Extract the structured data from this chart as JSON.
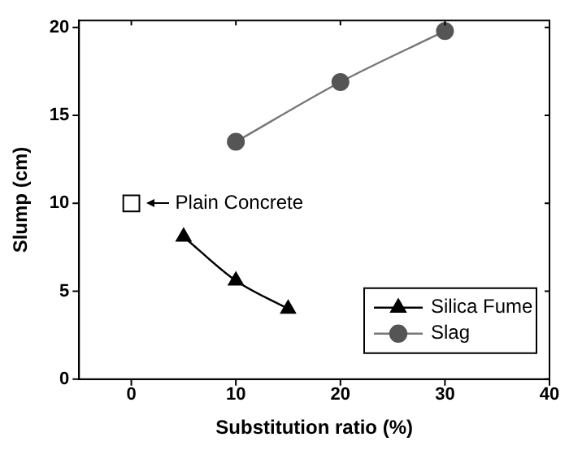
{
  "chart_data": {
    "type": "line",
    "xlabel": "Substitution ratio (%)",
    "ylabel": "Slump (cm)",
    "xlim": [
      -5,
      40
    ],
    "xticks": [
      0,
      10,
      20,
      30,
      40
    ],
    "ylim": [
      0,
      20.4
    ],
    "yticks": [
      0,
      5,
      10,
      15,
      20
    ],
    "grid": false,
    "legend": "bottom right",
    "line_style": "solid",
    "series": [
      {
        "name": "Silica Fume",
        "color": "#000000",
        "marker": "triangle",
        "x": [
          5,
          10,
          15
        ],
        "values": [
          8.1,
          5.6,
          4.0
        ]
      },
      {
        "name": "Slag",
        "color": "#555555",
        "marker": "circle",
        "x": [
          10,
          20,
          30
        ],
        "values": [
          13.5,
          16.9,
          19.8
        ]
      },
      {
        "type": "scatter",
        "color": "#000000",
        "marker": "square",
        "x": [
          0
        ],
        "values": [
          10
        ]
      }
    ],
    "annotations": [
      {
        "text": "Plain Concrete",
        "x": 0,
        "y": 10
      }
    ]
  }
}
